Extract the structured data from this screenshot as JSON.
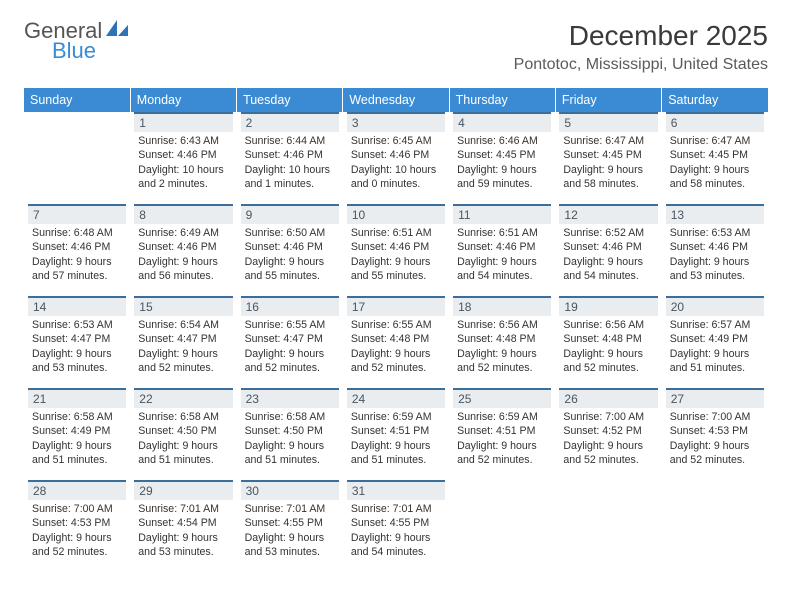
{
  "logo": {
    "text_general": "General",
    "text_blue": "Blue"
  },
  "title": "December 2025",
  "location": "Pontotoc, Mississippi, United States",
  "header_bg": "#3b8bd4",
  "header_fg": "#ffffff",
  "daynum_bg": "#e9edf0",
  "daynum_border": "#3b6e99",
  "text_color": "#333333",
  "weekdays": [
    "Sunday",
    "Monday",
    "Tuesday",
    "Wednesday",
    "Thursday",
    "Friday",
    "Saturday"
  ],
  "weeks": [
    [
      {
        "day": "",
        "sunrise": "",
        "sunset": "",
        "daylight": ""
      },
      {
        "day": "1",
        "sunrise": "Sunrise: 6:43 AM",
        "sunset": "Sunset: 4:46 PM",
        "daylight": "Daylight: 10 hours and 2 minutes."
      },
      {
        "day": "2",
        "sunrise": "Sunrise: 6:44 AM",
        "sunset": "Sunset: 4:46 PM",
        "daylight": "Daylight: 10 hours and 1 minutes."
      },
      {
        "day": "3",
        "sunrise": "Sunrise: 6:45 AM",
        "sunset": "Sunset: 4:46 PM",
        "daylight": "Daylight: 10 hours and 0 minutes."
      },
      {
        "day": "4",
        "sunrise": "Sunrise: 6:46 AM",
        "sunset": "Sunset: 4:45 PM",
        "daylight": "Daylight: 9 hours and 59 minutes."
      },
      {
        "day": "5",
        "sunrise": "Sunrise: 6:47 AM",
        "sunset": "Sunset: 4:45 PM",
        "daylight": "Daylight: 9 hours and 58 minutes."
      },
      {
        "day": "6",
        "sunrise": "Sunrise: 6:47 AM",
        "sunset": "Sunset: 4:45 PM",
        "daylight": "Daylight: 9 hours and 58 minutes."
      }
    ],
    [
      {
        "day": "7",
        "sunrise": "Sunrise: 6:48 AM",
        "sunset": "Sunset: 4:46 PM",
        "daylight": "Daylight: 9 hours and 57 minutes."
      },
      {
        "day": "8",
        "sunrise": "Sunrise: 6:49 AM",
        "sunset": "Sunset: 4:46 PM",
        "daylight": "Daylight: 9 hours and 56 minutes."
      },
      {
        "day": "9",
        "sunrise": "Sunrise: 6:50 AM",
        "sunset": "Sunset: 4:46 PM",
        "daylight": "Daylight: 9 hours and 55 minutes."
      },
      {
        "day": "10",
        "sunrise": "Sunrise: 6:51 AM",
        "sunset": "Sunset: 4:46 PM",
        "daylight": "Daylight: 9 hours and 55 minutes."
      },
      {
        "day": "11",
        "sunrise": "Sunrise: 6:51 AM",
        "sunset": "Sunset: 4:46 PM",
        "daylight": "Daylight: 9 hours and 54 minutes."
      },
      {
        "day": "12",
        "sunrise": "Sunrise: 6:52 AM",
        "sunset": "Sunset: 4:46 PM",
        "daylight": "Daylight: 9 hours and 54 minutes."
      },
      {
        "day": "13",
        "sunrise": "Sunrise: 6:53 AM",
        "sunset": "Sunset: 4:46 PM",
        "daylight": "Daylight: 9 hours and 53 minutes."
      }
    ],
    [
      {
        "day": "14",
        "sunrise": "Sunrise: 6:53 AM",
        "sunset": "Sunset: 4:47 PM",
        "daylight": "Daylight: 9 hours and 53 minutes."
      },
      {
        "day": "15",
        "sunrise": "Sunrise: 6:54 AM",
        "sunset": "Sunset: 4:47 PM",
        "daylight": "Daylight: 9 hours and 52 minutes."
      },
      {
        "day": "16",
        "sunrise": "Sunrise: 6:55 AM",
        "sunset": "Sunset: 4:47 PM",
        "daylight": "Daylight: 9 hours and 52 minutes."
      },
      {
        "day": "17",
        "sunrise": "Sunrise: 6:55 AM",
        "sunset": "Sunset: 4:48 PM",
        "daylight": "Daylight: 9 hours and 52 minutes."
      },
      {
        "day": "18",
        "sunrise": "Sunrise: 6:56 AM",
        "sunset": "Sunset: 4:48 PM",
        "daylight": "Daylight: 9 hours and 52 minutes."
      },
      {
        "day": "19",
        "sunrise": "Sunrise: 6:56 AM",
        "sunset": "Sunset: 4:48 PM",
        "daylight": "Daylight: 9 hours and 52 minutes."
      },
      {
        "day": "20",
        "sunrise": "Sunrise: 6:57 AM",
        "sunset": "Sunset: 4:49 PM",
        "daylight": "Daylight: 9 hours and 51 minutes."
      }
    ],
    [
      {
        "day": "21",
        "sunrise": "Sunrise: 6:58 AM",
        "sunset": "Sunset: 4:49 PM",
        "daylight": "Daylight: 9 hours and 51 minutes."
      },
      {
        "day": "22",
        "sunrise": "Sunrise: 6:58 AM",
        "sunset": "Sunset: 4:50 PM",
        "daylight": "Daylight: 9 hours and 51 minutes."
      },
      {
        "day": "23",
        "sunrise": "Sunrise: 6:58 AM",
        "sunset": "Sunset: 4:50 PM",
        "daylight": "Daylight: 9 hours and 51 minutes."
      },
      {
        "day": "24",
        "sunrise": "Sunrise: 6:59 AM",
        "sunset": "Sunset: 4:51 PM",
        "daylight": "Daylight: 9 hours and 51 minutes."
      },
      {
        "day": "25",
        "sunrise": "Sunrise: 6:59 AM",
        "sunset": "Sunset: 4:51 PM",
        "daylight": "Daylight: 9 hours and 52 minutes."
      },
      {
        "day": "26",
        "sunrise": "Sunrise: 7:00 AM",
        "sunset": "Sunset: 4:52 PM",
        "daylight": "Daylight: 9 hours and 52 minutes."
      },
      {
        "day": "27",
        "sunrise": "Sunrise: 7:00 AM",
        "sunset": "Sunset: 4:53 PM",
        "daylight": "Daylight: 9 hours and 52 minutes."
      }
    ],
    [
      {
        "day": "28",
        "sunrise": "Sunrise: 7:00 AM",
        "sunset": "Sunset: 4:53 PM",
        "daylight": "Daylight: 9 hours and 52 minutes."
      },
      {
        "day": "29",
        "sunrise": "Sunrise: 7:01 AM",
        "sunset": "Sunset: 4:54 PM",
        "daylight": "Daylight: 9 hours and 53 minutes."
      },
      {
        "day": "30",
        "sunrise": "Sunrise: 7:01 AM",
        "sunset": "Sunset: 4:55 PM",
        "daylight": "Daylight: 9 hours and 53 minutes."
      },
      {
        "day": "31",
        "sunrise": "Sunrise: 7:01 AM",
        "sunset": "Sunset: 4:55 PM",
        "daylight": "Daylight: 9 hours and 54 minutes."
      },
      {
        "day": "",
        "sunrise": "",
        "sunset": "",
        "daylight": ""
      },
      {
        "day": "",
        "sunrise": "",
        "sunset": "",
        "daylight": ""
      },
      {
        "day": "",
        "sunrise": "",
        "sunset": "",
        "daylight": ""
      }
    ]
  ]
}
